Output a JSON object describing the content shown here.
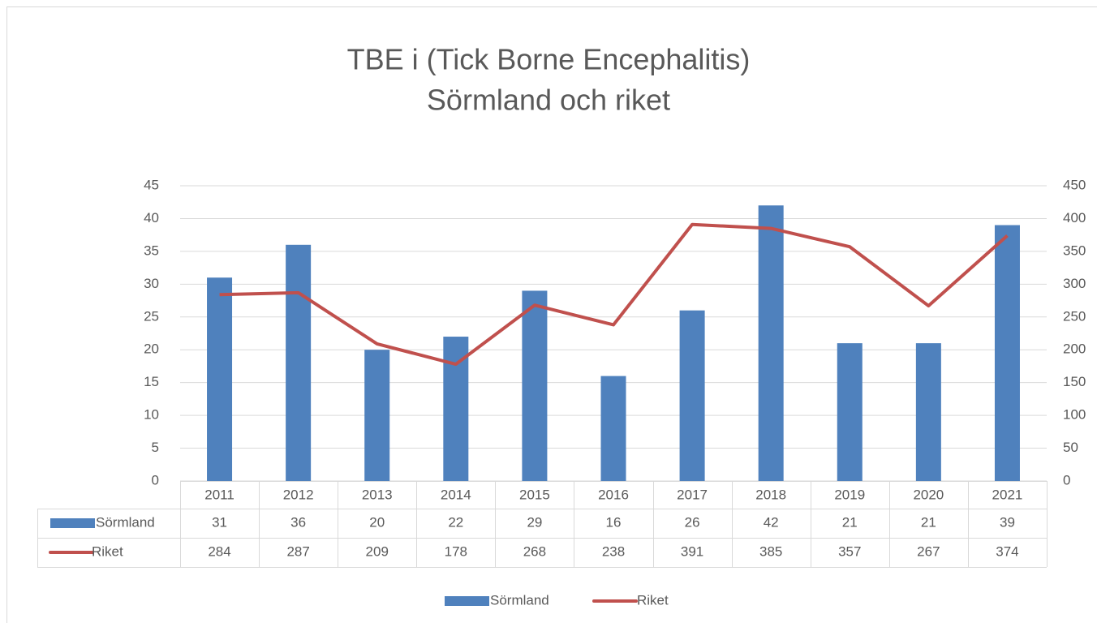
{
  "chart_data": {
    "type": "bar",
    "title": "TBE i (Tick Borne Encephalitis)",
    "subtitle": "Sörmland och riket",
    "categories": [
      "2011",
      "2012",
      "2013",
      "2014",
      "2015",
      "2016",
      "2017",
      "2018",
      "2019",
      "2020",
      "2021"
    ],
    "series": [
      {
        "name": "Sörmland",
        "type": "bar",
        "color": "#4f81bd",
        "axis": "y",
        "values": [
          31,
          36,
          20,
          22,
          29,
          16,
          26,
          42,
          21,
          21,
          39
        ]
      },
      {
        "name": "Riket",
        "type": "line",
        "color": "#c0504d",
        "axis": "y2",
        "values": [
          284,
          287,
          209,
          178,
          268,
          238,
          391,
          385,
          357,
          267,
          374
        ]
      }
    ],
    "ylim": [
      0,
      45
    ],
    "yticks": [
      0,
      5,
      10,
      15,
      20,
      25,
      30,
      35,
      40,
      45
    ],
    "y2lim": [
      0,
      450
    ],
    "y2ticks": [
      0,
      50,
      100,
      150,
      200,
      250,
      300,
      350,
      400,
      450
    ],
    "grid": true,
    "data_table": true,
    "legend": "bottom"
  }
}
